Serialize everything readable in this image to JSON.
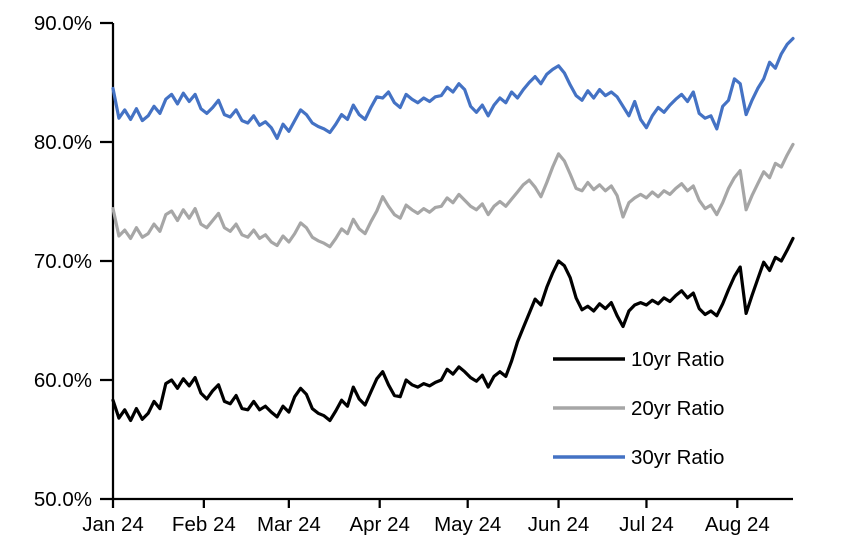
{
  "chart_data": {
    "type": "line",
    "title": "",
    "background_color": "#FFFFFF",
    "axis_color": "#000000",
    "grid": false,
    "y_min": 50,
    "y_max": 90,
    "y_ticks": [
      {
        "value": 90,
        "label": "90.0%"
      },
      {
        "value": 80,
        "label": "80.0%"
      },
      {
        "value": 70,
        "label": "70.0%"
      },
      {
        "value": 60,
        "label": "60.0%"
      },
      {
        "value": 50,
        "label": "50.0%"
      }
    ],
    "x_tick_labels": [
      "Jan 24",
      "Feb 24",
      "Mar 24",
      "Apr 24",
      "May 24",
      "Jun 24",
      "Jul 24",
      "Aug 24"
    ],
    "x_tick_positions": [
      0.0,
      0.1336,
      0.2586,
      0.3922,
      0.5216,
      0.6552,
      0.7845,
      0.9181
    ],
    "legend": {
      "position": "inside-lower-right",
      "entries": [
        "10yr Ratio",
        "20yr Ratio",
        "30yr Ratio"
      ]
    },
    "series": [
      {
        "name": "10yr Ratio",
        "color": "#000000",
        "values": [
          58.3,
          56.8,
          57.5,
          56.6,
          57.6,
          56.7,
          57.2,
          58.2,
          57.6,
          59.7,
          60.0,
          59.3,
          60.1,
          59.5,
          60.2,
          58.9,
          58.4,
          59.1,
          59.6,
          58.2,
          58.0,
          58.7,
          57.6,
          57.5,
          58.2,
          57.5,
          57.8,
          57.3,
          56.9,
          57.8,
          57.3,
          58.6,
          59.3,
          58.8,
          57.6,
          57.2,
          57.0,
          56.6,
          57.4,
          58.3,
          57.8,
          59.4,
          58.4,
          57.9,
          59.0,
          60.1,
          60.7,
          59.6,
          58.7,
          58.6,
          60.0,
          59.6,
          59.4,
          59.7,
          59.5,
          59.8,
          60.0,
          60.9,
          60.5,
          61.1,
          60.7,
          60.2,
          59.9,
          60.4,
          59.4,
          60.3,
          60.7,
          60.3,
          61.6,
          63.2,
          64.4,
          65.6,
          66.8,
          66.3,
          67.8,
          69.0,
          70.0,
          69.6,
          68.6,
          66.9,
          65.9,
          66.2,
          65.8,
          66.4,
          66.0,
          66.5,
          65.4,
          64.5,
          65.8,
          66.3,
          66.5,
          66.3,
          66.7,
          66.4,
          66.9,
          66.6,
          67.1,
          67.5,
          66.9,
          67.3,
          66.0,
          65.5,
          65.8,
          65.4,
          66.4,
          67.6,
          68.7,
          69.5,
          65.6,
          67.1,
          68.5,
          69.9,
          69.2,
          70.3,
          70.0,
          70.9,
          71.9
        ]
      },
      {
        "name": "20yr Ratio",
        "color": "#A6A6A6",
        "values": [
          74.4,
          72.1,
          72.6,
          71.9,
          72.8,
          72.0,
          72.3,
          73.1,
          72.5,
          73.9,
          74.2,
          73.4,
          74.3,
          73.6,
          74.4,
          73.1,
          72.8,
          73.4,
          74.0,
          72.8,
          72.5,
          73.1,
          72.2,
          72.0,
          72.6,
          71.9,
          72.2,
          71.6,
          71.3,
          72.1,
          71.6,
          72.3,
          73.2,
          72.8,
          72.0,
          71.7,
          71.5,
          71.2,
          71.9,
          72.7,
          72.3,
          73.5,
          72.7,
          72.3,
          73.3,
          74.2,
          75.4,
          74.6,
          73.9,
          73.6,
          74.7,
          74.3,
          74.0,
          74.4,
          74.1,
          74.5,
          74.6,
          75.3,
          74.9,
          75.6,
          75.1,
          74.6,
          74.3,
          74.8,
          73.9,
          74.6,
          75.0,
          74.6,
          75.2,
          75.8,
          76.4,
          76.8,
          76.2,
          75.4,
          76.6,
          77.9,
          79.0,
          78.4,
          77.3,
          76.1,
          75.9,
          76.6,
          76.0,
          76.4,
          75.9,
          76.3,
          75.5,
          73.7,
          74.9,
          75.3,
          75.6,
          75.3,
          75.8,
          75.4,
          75.9,
          75.6,
          76.1,
          76.5,
          75.9,
          76.3,
          75.1,
          74.4,
          74.7,
          73.9,
          74.9,
          76.1,
          77.0,
          77.6,
          74.3,
          75.5,
          76.5,
          77.5,
          77.0,
          78.2,
          77.9,
          78.9,
          79.8
        ]
      },
      {
        "name": "30yr Ratio",
        "color": "#4472C4",
        "values": [
          84.5,
          82.0,
          82.7,
          81.9,
          82.8,
          81.8,
          82.2,
          83.0,
          82.4,
          83.6,
          84.0,
          83.2,
          84.1,
          83.4,
          84.0,
          82.8,
          82.4,
          82.9,
          83.5,
          82.3,
          82.1,
          82.7,
          81.8,
          81.6,
          82.2,
          81.4,
          81.7,
          81.2,
          80.3,
          81.5,
          80.9,
          81.8,
          82.7,
          82.3,
          81.6,
          81.3,
          81.1,
          80.8,
          81.5,
          82.3,
          81.9,
          83.1,
          82.3,
          81.9,
          82.9,
          83.8,
          83.7,
          84.2,
          83.3,
          82.9,
          84.0,
          83.6,
          83.3,
          83.7,
          83.4,
          83.8,
          83.9,
          84.6,
          84.2,
          84.9,
          84.4,
          83.0,
          82.5,
          83.1,
          82.2,
          83.1,
          83.7,
          83.3,
          84.2,
          83.7,
          84.4,
          85.0,
          85.5,
          84.9,
          85.7,
          86.1,
          86.4,
          85.8,
          84.8,
          83.9,
          83.5,
          84.3,
          83.7,
          84.4,
          83.9,
          84.2,
          83.8,
          83.0,
          82.2,
          83.4,
          81.9,
          81.2,
          82.2,
          82.9,
          82.5,
          83.1,
          83.6,
          84.0,
          83.4,
          84.2,
          82.4,
          82.0,
          82.2,
          81.1,
          83.0,
          83.5,
          85.3,
          84.9,
          82.3,
          83.5,
          84.5,
          85.3,
          86.7,
          86.2,
          87.4,
          88.2,
          88.7
        ]
      }
    ]
  }
}
